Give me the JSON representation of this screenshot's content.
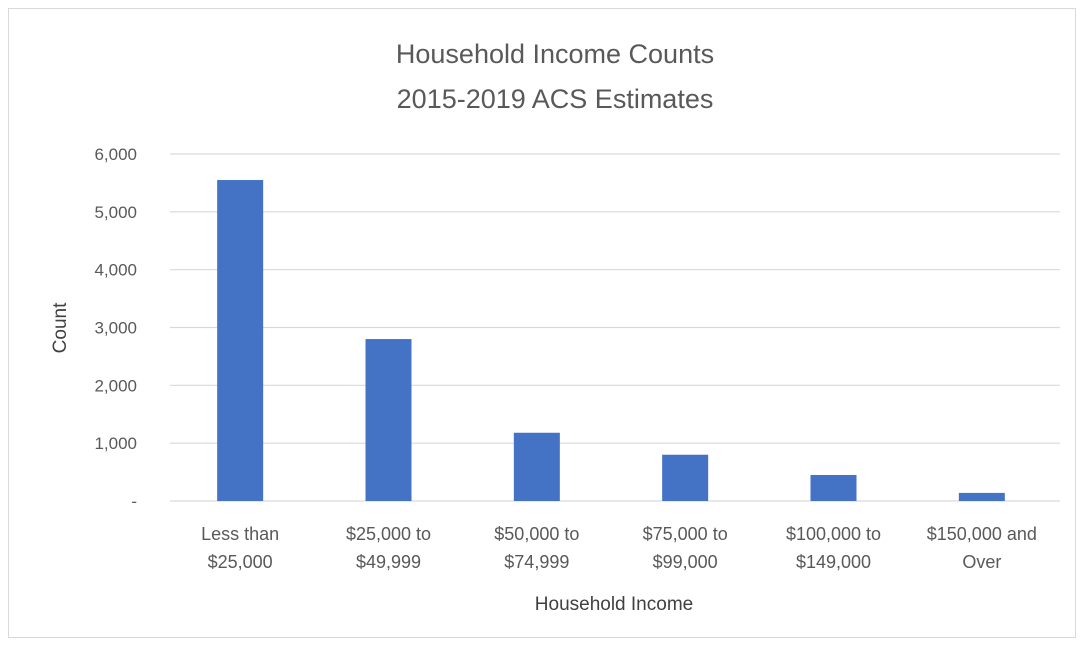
{
  "chart_data": {
    "type": "bar",
    "title": [
      "Household Income Counts",
      "2015-2019 ACS Estimates"
    ],
    "xlabel": "Household Income",
    "ylabel": "Count",
    "categories": [
      [
        "Less than",
        "$25,000"
      ],
      [
        "$25,000 to",
        "$49,999"
      ],
      [
        "$50,000 to",
        "$74,999"
      ],
      [
        "$75,000 to",
        "$99,000"
      ],
      [
        "$100,000 to",
        "$149,000"
      ],
      [
        "$150,000 and",
        "Over"
      ]
    ],
    "values": [
      5550,
      2800,
      1180,
      800,
      450,
      140
    ],
    "ylim": [
      0,
      6000
    ],
    "yticks": [
      0,
      1000,
      2000,
      3000,
      4000,
      5000,
      6000
    ],
    "ytick_labels": [
      "-",
      "1,000",
      "2,000",
      "3,000",
      "4,000",
      "5,000",
      "6,000"
    ],
    "grid": true,
    "bar_color": "#4472c4",
    "grid_color": "#d9d9d9"
  }
}
